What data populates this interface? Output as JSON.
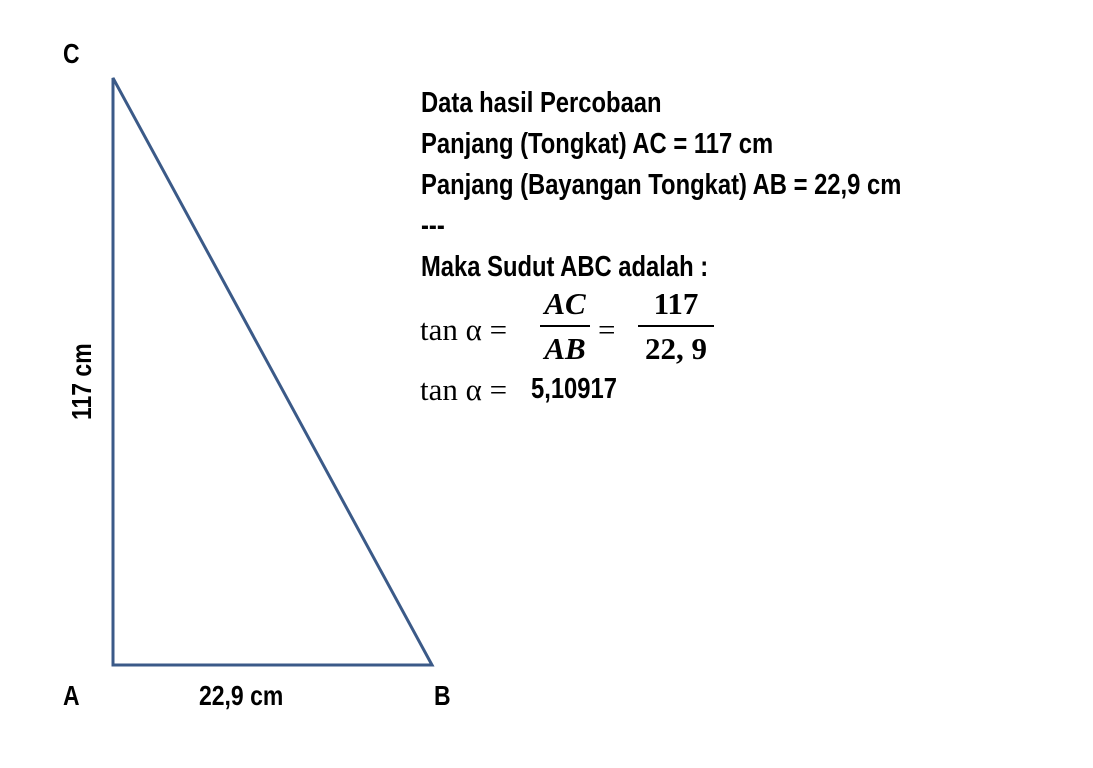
{
  "diagram": {
    "vertices": {
      "A": "A",
      "B": "B",
      "C": "C"
    },
    "side_labels": {
      "AC": "117 cm",
      "AB": "22,9 cm"
    },
    "line_color": "#3b5a88"
  },
  "text": {
    "lines": [
      "Data hasil Percobaan",
      "Panjang (Tongkat) AC = 117 cm",
      "Panjang (Bayangan Tongkat) AB = 22,9 cm",
      "---",
      "Maka Sudut ABC adalah :"
    ],
    "formula1": {
      "lhs": "tan α =",
      "frac1_num": "AC",
      "frac1_den": "AB",
      "eq": "=",
      "frac2_num": "117",
      "frac2_den": "22, 9"
    },
    "formula2": {
      "lhs": "tan α =",
      "value": "5,10917"
    }
  }
}
